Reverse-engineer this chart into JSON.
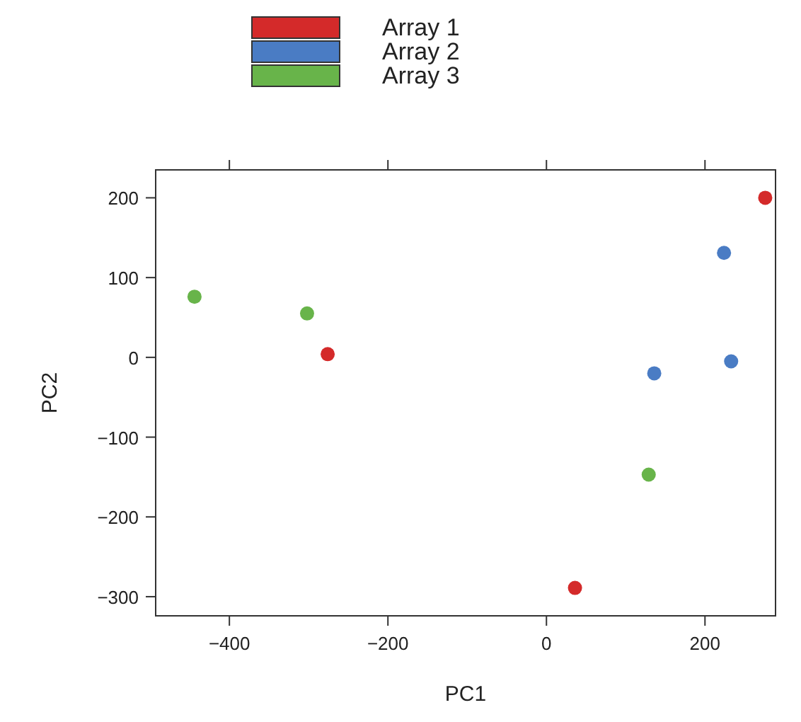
{
  "chart_data": {
    "type": "scatter",
    "xlabel": "PC1",
    "ylabel": "PC2",
    "xlim": [
      -493,
      289
    ],
    "ylim": [
      -324,
      235
    ],
    "xticks": [
      -400,
      -200,
      0,
      200
    ],
    "yticks": [
      -300,
      -200,
      -100,
      0,
      100,
      200
    ],
    "grid": false,
    "legend": "top",
    "marker": "circle",
    "series": [
      {
        "name": "Array 1",
        "color": "#d42a2a",
        "x": [
          276,
          -276,
          36
        ],
        "values": [
          200,
          4,
          -289
        ]
      },
      {
        "name": "Array 2",
        "color": "#4a7cc4",
        "x": [
          224,
          136,
          233
        ],
        "values": [
          131,
          -20,
          -5
        ]
      },
      {
        "name": "Array 3",
        "color": "#68b44a",
        "x": [
          -444,
          -302,
          129
        ],
        "values": [
          76,
          55,
          -147
        ]
      }
    ]
  }
}
